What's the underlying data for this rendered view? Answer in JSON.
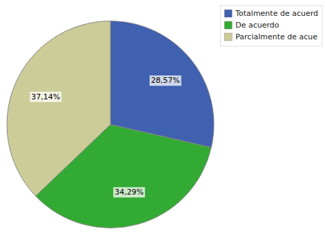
{
  "chart_data": {
    "type": "pie",
    "categories": [
      "Totalmente de acuerd",
      "De acuerdo",
      "Parcialmente de acue"
    ],
    "values": [
      28.57,
      34.29,
      37.14
    ],
    "value_labels": [
      "28,57%",
      "34,29%",
      "37,14%"
    ],
    "colors": [
      "#4060b0",
      "#33aa33",
      "#cccc99"
    ],
    "data_labels": true,
    "legend": "upper right"
  }
}
